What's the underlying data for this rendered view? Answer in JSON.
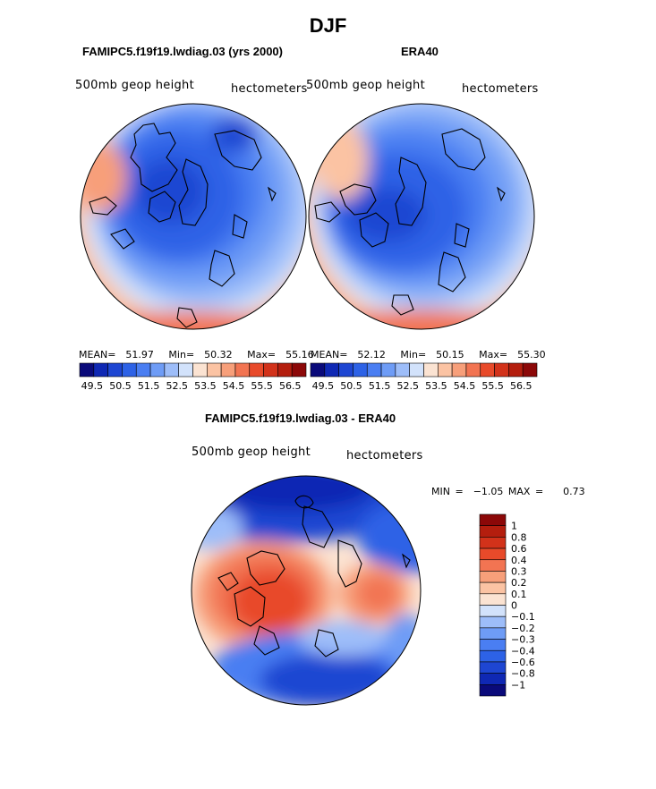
{
  "figure": {
    "title": "DJF"
  },
  "panels": {
    "model": {
      "title": "FAMIPC5.f19f19.lwdiag.03 (yrs 2000)",
      "variable": "500mb geop height",
      "units": "hectometers",
      "stats": {
        "mean_label": "MEAN=",
        "mean": "51.97",
        "min_label": "Min=",
        "min": "50.32",
        "max_label": "Max=",
        "max": "55.16"
      }
    },
    "obs": {
      "title": "ERA40",
      "variable": "500mb geop height",
      "units": "hectometers",
      "stats": {
        "mean_label": "MEAN=",
        "mean": "52.12",
        "min_label": "Min=",
        "min": "50.15",
        "max_label": "Max=",
        "max": "55.30"
      }
    },
    "diff": {
      "title": "FAMIPC5.f19f19.lwdiag.03 - ERA40",
      "variable": "500mb geop height",
      "units": "hectometers",
      "stats": {
        "min_label": "MIN =",
        "min": "−1.05",
        "max_label": "MAX =",
        "max": "0.73"
      }
    }
  },
  "chart_data": [
    {
      "type": "heatmap",
      "projection": "north-polar-stereographic",
      "title": "FAMIPC5.f19f19.lwdiag.03 (yrs 2000)",
      "variable": "500mb geop height",
      "units": "hectometers",
      "mean": 51.97,
      "min": 50.32,
      "max": 55.16,
      "colorbar_levels": [
        49.5,
        50.0,
        50.5,
        51.0,
        51.5,
        52.0,
        52.5,
        53.0,
        53.5,
        54.0,
        54.5,
        55.0,
        55.5,
        56.0,
        56.5
      ],
      "colorbar_tick_labels": [
        "49.5",
        "50.5",
        "51.5",
        "52.5",
        "53.5",
        "54.5",
        "55.5",
        "56.5"
      ]
    },
    {
      "type": "heatmap",
      "projection": "north-polar-stereographic",
      "title": "ERA40",
      "variable": "500mb geop height",
      "units": "hectometers",
      "mean": 52.12,
      "min": 50.15,
      "max": 55.3,
      "colorbar_levels": [
        49.5,
        50.0,
        50.5,
        51.0,
        51.5,
        52.0,
        52.5,
        53.0,
        53.5,
        54.0,
        54.5,
        55.0,
        55.5,
        56.0,
        56.5
      ],
      "colorbar_tick_labels": [
        "49.5",
        "50.5",
        "51.5",
        "52.5",
        "53.5",
        "54.5",
        "55.5",
        "56.5"
      ]
    },
    {
      "type": "heatmap",
      "projection": "north-polar-stereographic",
      "title": "FAMIPC5.f19f19.lwdiag.03 - ERA40",
      "variable": "500mb geop height",
      "units": "hectometers",
      "min": -1.05,
      "max": 0.73,
      "colorbar_levels": [
        1,
        0.8,
        0.6,
        0.4,
        0.3,
        0.2,
        0.1,
        0,
        -0.1,
        -0.2,
        -0.3,
        -0.4,
        -0.6,
        -0.8,
        -1
      ],
      "colorbar_tick_labels": [
        "1",
        "0.8",
        "0.6",
        "0.4",
        "0.3",
        "0.2",
        "0.1",
        "0",
        "−0.1",
        "−0.2",
        "−0.3",
        "−0.4",
        "−0.6",
        "−0.8",
        "−1"
      ]
    }
  ],
  "colors": {
    "scale16": [
      "#0a0a7a",
      "#0f28b4",
      "#1e46d2",
      "#2d62e6",
      "#4a7ef2",
      "#6e9cf6",
      "#9dbdf9",
      "#d2e2fb",
      "#fbe3d2",
      "#fbc3a3",
      "#f79f7a",
      "#f27452",
      "#e84a2a",
      "#d2321a",
      "#b41e0e",
      "#8c0808"
    ]
  }
}
